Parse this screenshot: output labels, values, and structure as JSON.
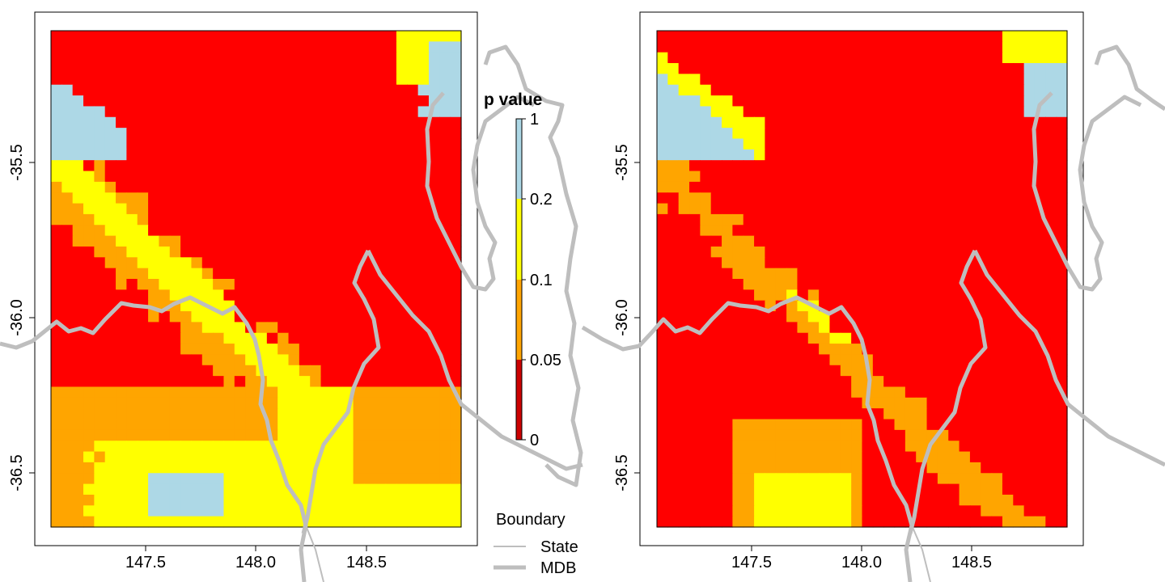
{
  "colors": {
    "sig_lt_005": "#ff0000",
    "sig_005_01": "#ffa500",
    "sig_01_02": "#ffff00",
    "sig_gt_02": "#add8e6",
    "boundary": "#bebebe"
  },
  "legend": {
    "title": "p value",
    "ticks": [
      "1",
      "0.2",
      "0.1",
      "0.05",
      "0"
    ],
    "boundary_title": "Boundary",
    "boundary_items": [
      {
        "label": "State",
        "style": "thin"
      },
      {
        "label": "MDB",
        "style": "thick"
      }
    ]
  },
  "maps": [
    {
      "id": "left",
      "x_ticks": [
        "147.5",
        "148.0",
        "148.5"
      ],
      "y_ticks": [
        "-35.5",
        "-36.0",
        "-36.5"
      ],
      "grid_cols": 38,
      "grid_rows": 46,
      "grid_note": "p-value class raster: 0=<0.05 (red), 1=0.05-0.1 (orange), 2=0.1-0.2 (yellow), 3=>0.2 (light blue)"
    },
    {
      "id": "right",
      "x_ticks": [
        "147.5",
        "148.0",
        "148.5"
      ],
      "y_ticks": [
        "-35.5",
        "-36.0",
        "-36.5"
      ],
      "grid_cols": 38,
      "grid_rows": 46
    }
  ]
}
